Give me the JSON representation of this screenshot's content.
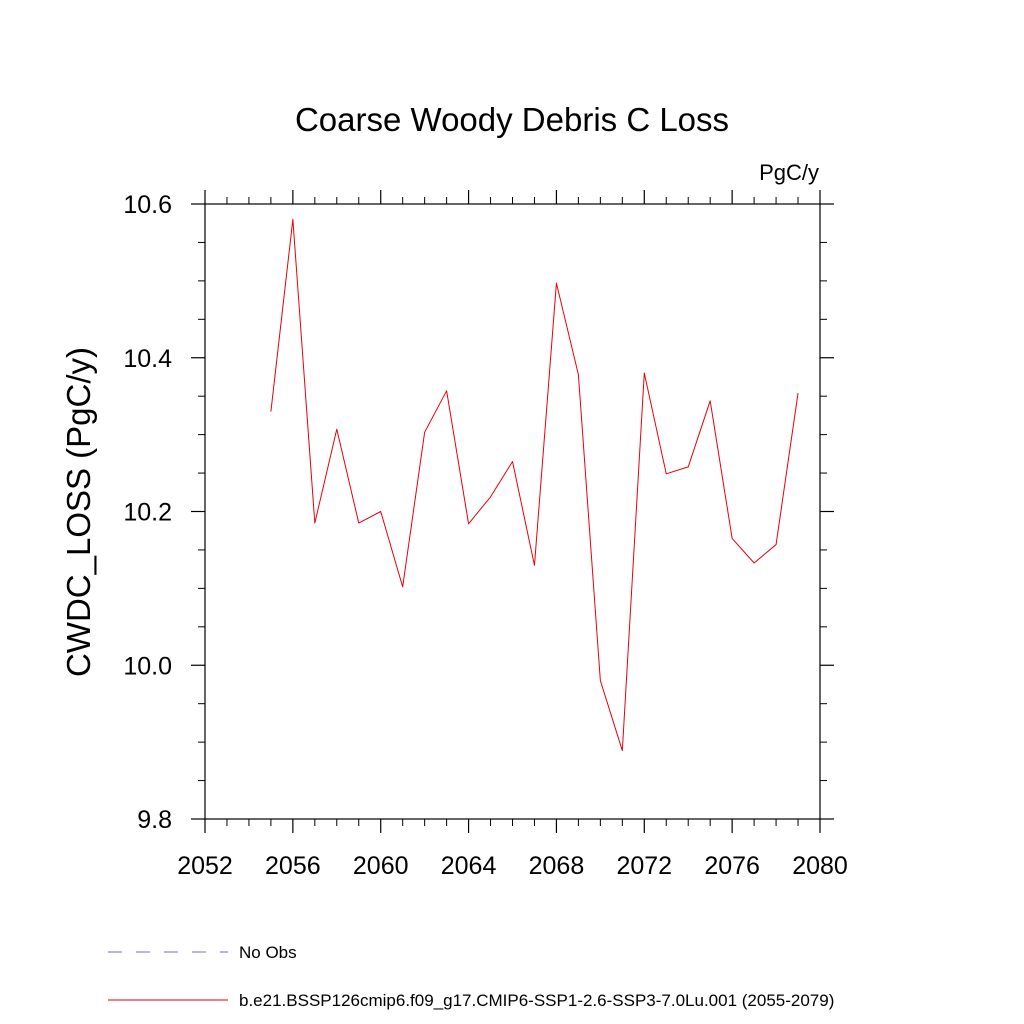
{
  "chart_data": {
    "type": "line",
    "title": "Coarse Woody Debris C Loss",
    "units": "PgC/y",
    "xlabel": "",
    "ylabel": "CWDC_LOSS  (PgC/y)",
    "xlim": [
      2052,
      2080
    ],
    "ylim": [
      9.8,
      10.6
    ],
    "x_ticks": [
      2052,
      2056,
      2060,
      2064,
      2068,
      2072,
      2076,
      2080
    ],
    "x_tick_labels": [
      "2052",
      "2056",
      "2060",
      "2064",
      "2068",
      "2072",
      "2076",
      "2080"
    ],
    "x_minor_step": 1,
    "y_ticks": [
      9.8,
      10.0,
      10.2,
      10.4,
      10.6
    ],
    "y_tick_labels": [
      "9.8",
      "10.0",
      "10.2",
      "10.4",
      "10.6"
    ],
    "y_minor_step": 0.05,
    "grid": false,
    "series": [
      {
        "name": "b.e21.BSSP126cmip6.f09_g17.CMIP6-SSP1-2.6-SSP3-7.0Lu.001 (2055-2079)",
        "color": "#e8000b",
        "style": "solid",
        "x": [
          2055,
          2056,
          2057,
          2058,
          2059,
          2060,
          2061,
          2062,
          2063,
          2064,
          2065,
          2066,
          2067,
          2068,
          2069,
          2070,
          2071,
          2072,
          2073,
          2074,
          2075,
          2076,
          2077,
          2078,
          2079
        ],
        "values": [
          10.33,
          10.58,
          10.185,
          10.307,
          10.185,
          10.2,
          10.102,
          10.303,
          10.357,
          10.184,
          10.219,
          10.265,
          10.13,
          10.497,
          10.378,
          9.98,
          9.889,
          10.38,
          10.249,
          10.258,
          10.344,
          10.165,
          10.133,
          10.157,
          10.354
        ]
      }
    ],
    "legend": {
      "placement": "bottom-left",
      "entries": [
        {
          "label": "No Obs",
          "color": "#7b68c8",
          "style": "dashed"
        },
        {
          "label": "b.e21.BSSP126cmip6.f09_g17.CMIP6-SSP1-2.6-SSP3-7.0Lu.001 (2055-2079)",
          "color": "#e8000b",
          "style": "solid"
        }
      ]
    }
  }
}
